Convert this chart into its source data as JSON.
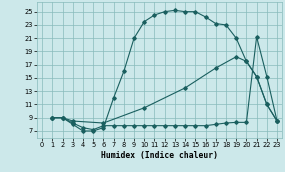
{
  "xlabel": "Humidex (Indice chaleur)",
  "bg_color": "#cce8ea",
  "grid_color": "#88bbbb",
  "line_color": "#1a5f5f",
  "xlim": [
    -0.5,
    23.5
  ],
  "ylim": [
    6.0,
    26.5
  ],
  "xticks": [
    0,
    1,
    2,
    3,
    4,
    5,
    6,
    7,
    8,
    9,
    10,
    11,
    12,
    13,
    14,
    15,
    16,
    17,
    18,
    19,
    20,
    21,
    22,
    23
  ],
  "yticks": [
    7,
    9,
    11,
    13,
    15,
    17,
    19,
    21,
    23,
    25
  ],
  "line1_x": [
    1,
    2,
    3,
    4,
    5,
    6,
    7,
    8,
    9,
    10,
    11,
    12,
    13,
    14,
    15,
    16,
    17,
    18,
    19,
    20,
    21,
    22,
    23
  ],
  "line1_y": [
    9,
    9,
    8,
    7,
    7,
    7.5,
    12,
    16,
    21,
    23.5,
    24.5,
    25,
    25.2,
    25,
    25,
    24.2,
    23.2,
    23,
    21,
    17.5,
    15.2,
    11,
    8.5
  ],
  "line2_x": [
    1,
    2,
    3,
    6,
    10,
    14,
    17,
    19,
    20,
    21,
    22,
    23
  ],
  "line2_y": [
    9,
    9,
    8.5,
    8.2,
    10.5,
    13.5,
    16.5,
    18.2,
    17.5,
    15.2,
    11,
    8.5
  ],
  "line3_x": [
    1,
    2,
    3,
    4,
    5,
    6,
    7,
    8,
    9,
    10,
    11,
    12,
    13,
    14,
    15,
    16,
    17,
    18,
    19,
    20,
    21,
    22,
    23
  ],
  "line3_y": [
    9,
    9,
    8.2,
    7.5,
    7.2,
    7.8,
    7.8,
    7.8,
    7.8,
    7.8,
    7.8,
    7.8,
    7.8,
    7.8,
    7.8,
    7.8,
    8.0,
    8.2,
    8.3,
    8.3,
    21.2,
    15.2,
    8.5
  ]
}
